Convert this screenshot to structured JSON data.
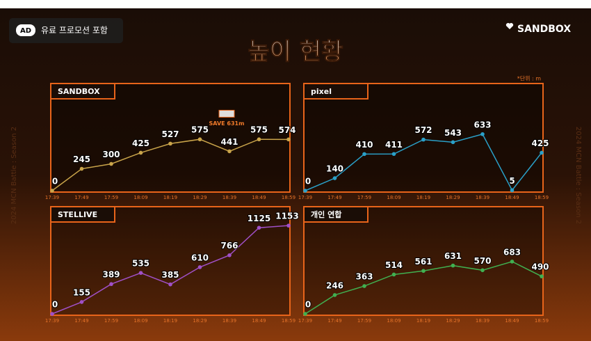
{
  "ad_badge": "AD",
  "ad_text": "유료 프로모션 포함",
  "brand": "SANDBOX",
  "title": "높이 현황",
  "unit_note": "*단위 : m",
  "side_label": "2024 MCN Battle : Season 2",
  "chart_data": [
    {
      "type": "line",
      "title": "SANDBOX",
      "annotation": "SAVE 631m",
      "color": "#c9a44a",
      "categories": [
        "17:39",
        "17:49",
        "17:59",
        "18:09",
        "18:19",
        "18:29",
        "18:39",
        "18:49",
        "18:59"
      ],
      "values": [
        0,
        245,
        300,
        425,
        527,
        575,
        441,
        575,
        574
      ],
      "ylim": [
        0,
        1200
      ]
    },
    {
      "type": "line",
      "title": "pixel",
      "color": "#2aa0c8",
      "categories": [
        "17:39",
        "17:49",
        "17:59",
        "18:09",
        "18:19",
        "18:29",
        "18:39",
        "18:49",
        "18:59"
      ],
      "values": [
        0,
        140,
        410,
        411,
        572,
        543,
        633,
        5,
        425
      ],
      "ylim": [
        0,
        1200
      ]
    },
    {
      "type": "line",
      "title": "STELLIVE",
      "color": "#a050c8",
      "categories": [
        "17:39",
        "17:49",
        "17:59",
        "18:09",
        "18:19",
        "18:29",
        "18:39",
        "18:49",
        "18:59"
      ],
      "values": [
        0,
        155,
        389,
        535,
        385,
        610,
        766,
        1125,
        1153
      ],
      "ylim": [
        0,
        1400
      ]
    },
    {
      "type": "line",
      "title": "개인 연합",
      "color": "#40b050",
      "categories": [
        "17:39",
        "17:49",
        "17:59",
        "18:09",
        "18:19",
        "18:29",
        "18:39",
        "18:49",
        "18:59"
      ],
      "values": [
        0,
        246,
        363,
        514,
        561,
        631,
        570,
        683,
        490
      ],
      "ylim": [
        0,
        1400
      ]
    }
  ]
}
